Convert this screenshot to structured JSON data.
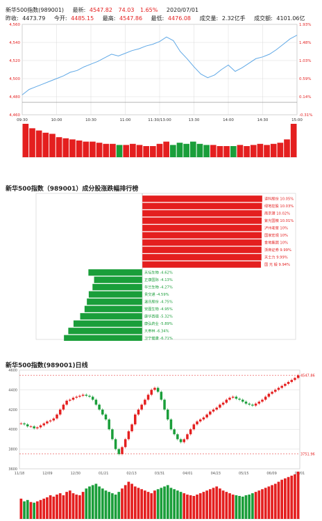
{
  "header": {
    "line1": {
      "name": "新华500指数(989001)",
      "latest_label": "最新:",
      "latest_value": "4547.82",
      "change": "74.03",
      "change_pct": "1.65%",
      "date": "2020/07/01"
    },
    "line2": {
      "prev_close_label": "昨收:",
      "prev_close": "4473.79",
      "open_label": "今开:",
      "open": "4485.15",
      "high_label": "最高:",
      "high": "4547.86",
      "low_label": "最低:",
      "low": "4476.08",
      "volume_label": "成交量:",
      "volume": "2.32亿手",
      "turnover_label": "成交额:",
      "turnover": "4101.06亿"
    }
  },
  "colors": {
    "up": "#e41f1f",
    "down": "#1a9e3a",
    "line": "#5fa8e6",
    "grid": "#d9d9d9"
  },
  "chart_data": [
    {
      "type": "line",
      "title": "",
      "y_ticks_left": [
        "4,560",
        "4,540",
        "4,520",
        "4,500",
        "4,480",
        "4,460"
      ],
      "y_ticks_right": [
        "1.93%",
        "1.48%",
        "1.03%",
        "0.59%",
        "0.14%",
        "-0.31%"
      ],
      "ylim": [
        4460,
        4560
      ],
      "x_ticks": [
        "09:30",
        "10:00",
        "10:30",
        "11:00",
        "11:30/13:00",
        "13:30",
        "14:00",
        "14:30",
        "15:00"
      ],
      "prev_close": 4473.79,
      "x": [
        0,
        6,
        12,
        18,
        24,
        30,
        36,
        42,
        48,
        54,
        60,
        66,
        72,
        78,
        84,
        90,
        96,
        102,
        108,
        114,
        120,
        126,
        132,
        138,
        144,
        150,
        156,
        162,
        168,
        174,
        180,
        186,
        192,
        198,
        204,
        210,
        216,
        222,
        228,
        234,
        240
      ],
      "y": [
        4482,
        4488,
        4491,
        4494,
        4497,
        4500,
        4503,
        4507,
        4509,
        4513,
        4516,
        4519,
        4523,
        4527,
        4525,
        4528,
        4531,
        4533,
        4536,
        4538,
        4541,
        4546,
        4542,
        4530,
        4522,
        4513,
        4505,
        4501,
        4504,
        4510,
        4515,
        4508,
        4512,
        4517,
        4522,
        4524,
        4527,
        4532,
        4538,
        4544,
        4548
      ],
      "volume": [
        30,
        26,
        24,
        22,
        21,
        18,
        17,
        16,
        15,
        14,
        14,
        13,
        12,
        12,
        11,
        11,
        12,
        11,
        10,
        10,
        12,
        14,
        11,
        13,
        12,
        14,
        12,
        11,
        11,
        10,
        10,
        10,
        11,
        10,
        11,
        12,
        11,
        12,
        13,
        16,
        30
      ]
    },
    {
      "type": "bar",
      "title": "新华500指数（989001）成分股涨跌幅排行榜",
      "gainers": [
        {
          "name": "道科股份",
          "value": 10.05
        },
        {
          "name": "绿地控股",
          "value": 10.03
        },
        {
          "name": "南京港",
          "value": 10.02
        },
        {
          "name": "紫光国微",
          "value": 10.01
        },
        {
          "name": "泸州老窖",
          "value": 10
        },
        {
          "name": "国家宏观",
          "value": 10
        },
        {
          "name": "金地集团",
          "value": 10
        },
        {
          "name": "浙商证券",
          "value": 9.99
        },
        {
          "name": "天士力",
          "value": 9.99
        },
        {
          "name": "国光 锻",
          "value": 9.94
        }
      ],
      "gainer_labels": [
        "道科股份 10.05%",
        "绿地控股 10.03%",
        "南京港 10.02%",
        "紫光国微 10.01%",
        "泸州老窖 10%",
        "国家宏观 10%",
        "金地集团 10%",
        "浙商证券 9.99%",
        "天士力 9.99%",
        "国 光 锻 9.94%"
      ],
      "losers": [
        {
          "name": "天坛生物",
          "value": -4.62
        },
        {
          "name": "正康国际",
          "value": -4.13
        },
        {
          "name": "华兰生物",
          "value": -4.27
        },
        {
          "name": "贵交通",
          "value": -4.59
        },
        {
          "name": "温氏股份",
          "value": -4.75
        },
        {
          "name": "安图生物",
          "value": -4.95
        },
        {
          "name": "康华西德",
          "value": -5.32
        },
        {
          "name": "康弘药业",
          "value": -5.89
        },
        {
          "name": "大参林",
          "value": -6.34
        },
        {
          "name": "卫宁健康",
          "value": -6.71
        }
      ],
      "loser_labels": [
        "天坛生物 -4.62%",
        "正康国际 -4.13%",
        "华兰生物 -4.27%",
        "贵交通 -4.59%",
        "温氏股份 -4.75%",
        "安图生物 -4.95%",
        "康华西德 -5.32%",
        "康弘药业 -5.89%",
        "大参林 -6.34%",
        "卫宁健康 -6.71%"
      ]
    },
    {
      "type": "line",
      "title": "新华500指数(989001)日线",
      "y_ticks": [
        "4600",
        "4400",
        "4200",
        "4000",
        "3800",
        "3600"
      ],
      "ylim": [
        3600,
        4600
      ],
      "x_ticks": [
        "11/18",
        "12/09",
        "12/30",
        "01/21",
        "02/13",
        "03/31",
        "04/01",
        "04/23",
        "05/15",
        "06/09",
        "07/01"
      ],
      "max_label": "4547.86",
      "min_label": "3751.96",
      "closes": [
        4060,
        4050,
        4030,
        4030,
        4010,
        4020,
        4040,
        4060,
        4080,
        4090,
        4110,
        4150,
        4200,
        4250,
        4290,
        4300,
        4320,
        4330,
        4340,
        4350,
        4340,
        4330,
        4300,
        4250,
        4200,
        4150,
        4100,
        4000,
        3900,
        3800,
        3750,
        3820,
        3900,
        3980,
        4050,
        4150,
        4200,
        4250,
        4300,
        4350,
        4400,
        4420,
        4380,
        4300,
        4200,
        4100,
        4000,
        3950,
        3900,
        3870,
        3900,
        3950,
        4000,
        4050,
        4080,
        4100,
        4120,
        4150,
        4180,
        4200,
        4220,
        4250,
        4270,
        4300,
        4320,
        4330,
        4310,
        4300,
        4280,
        4260,
        4250,
        4240,
        4260,
        4280,
        4300,
        4330,
        4360,
        4380,
        4400,
        4420,
        4440,
        4460,
        4480,
        4500,
        4520,
        4547
      ],
      "volumes": [
        30,
        26,
        28,
        25,
        24,
        26,
        28,
        30,
        32,
        35,
        33,
        36,
        38,
        35,
        40,
        42,
        38,
        36,
        35,
        40,
        45,
        48,
        50,
        52,
        48,
        45,
        42,
        40,
        38,
        36,
        40,
        45,
        50,
        55,
        52,
        48,
        46,
        44,
        42,
        40,
        38,
        42,
        44,
        46,
        48,
        50,
        46,
        44,
        42,
        40,
        38,
        36,
        35,
        34,
        36,
        38,
        40,
        42,
        44,
        46,
        48,
        45,
        42,
        40,
        38,
        36,
        35,
        34,
        33,
        35,
        36,
        38,
        40,
        42,
        44,
        46,
        48,
        50,
        52,
        55,
        58,
        60,
        62,
        64,
        66,
        70
      ]
    }
  ]
}
